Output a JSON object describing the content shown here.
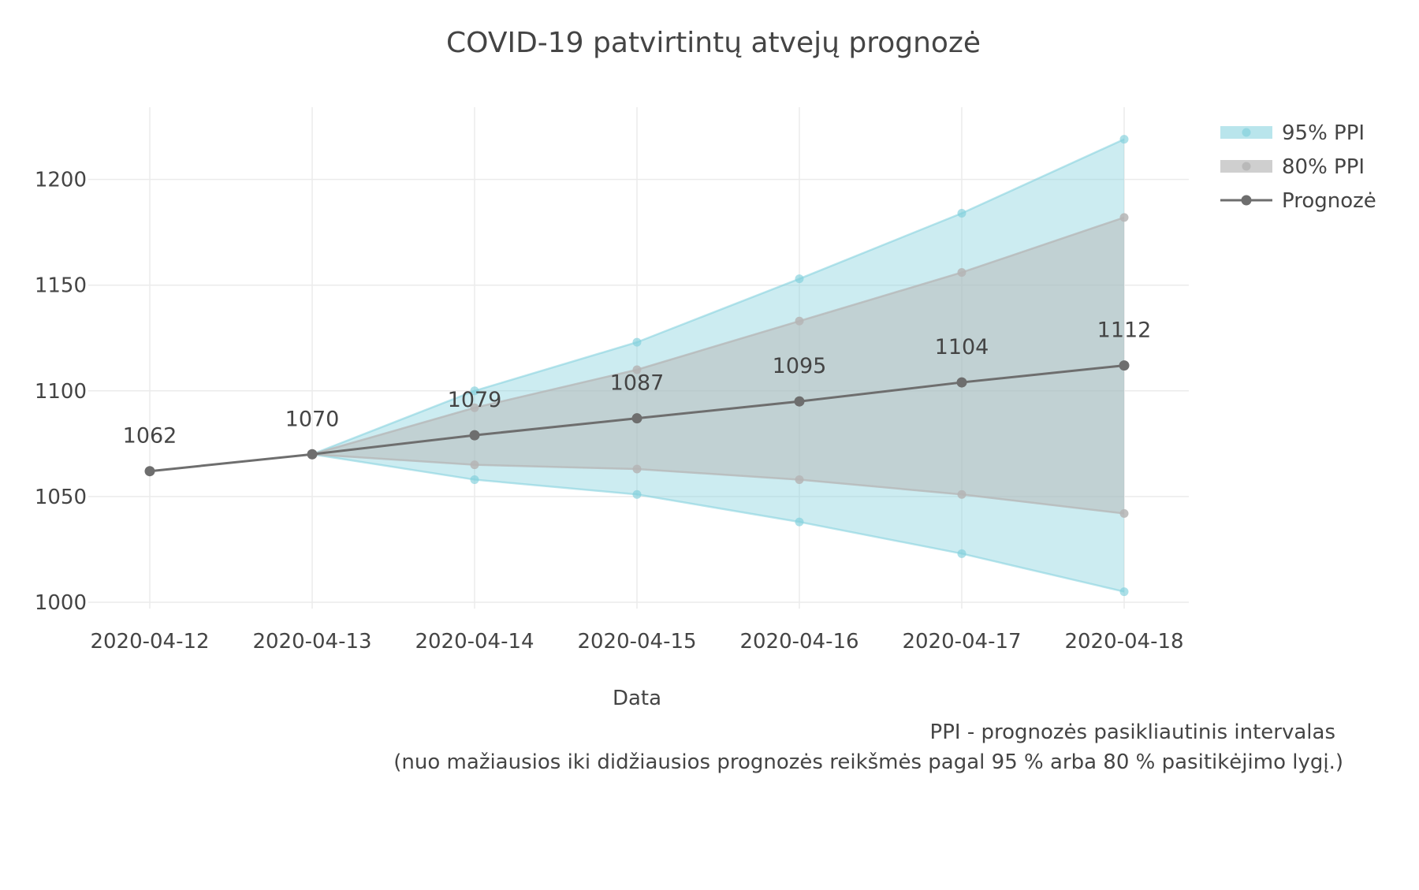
{
  "chart_data": {
    "type": "line",
    "title": "COVID-19 patvirtintų atvejų prognozė",
    "xlabel": "Data",
    "ylabel": "",
    "x": [
      "2020-04-12",
      "2020-04-13",
      "2020-04-14",
      "2020-04-15",
      "2020-04-16",
      "2020-04-17",
      "2020-04-18"
    ],
    "ylim": [
      990,
      1225
    ],
    "yticks": [
      1000,
      1050,
      1100,
      1150,
      1200
    ],
    "grid": true,
    "legend_position": "top-right",
    "series": [
      {
        "name": "95% PPI",
        "kind": "band",
        "color": "#7fcfdc",
        "x": [
          "2020-04-13",
          "2020-04-14",
          "2020-04-15",
          "2020-04-16",
          "2020-04-17",
          "2020-04-18"
        ],
        "upper": [
          1070,
          1100,
          1123,
          1153,
          1184,
          1219
        ],
        "lower": [
          1070,
          1058,
          1051,
          1038,
          1023,
          1005
        ]
      },
      {
        "name": "80% PPI",
        "kind": "band",
        "color": "#b5b5b5",
        "x": [
          "2020-04-13",
          "2020-04-14",
          "2020-04-15",
          "2020-04-16",
          "2020-04-17",
          "2020-04-18"
        ],
        "upper": [
          1070,
          1092,
          1110,
          1133,
          1156,
          1182
        ],
        "lower": [
          1070,
          1065,
          1063,
          1058,
          1051,
          1042
        ]
      },
      {
        "name": "Prognozė",
        "kind": "line",
        "color": "#6e6e6e",
        "x": [
          "2020-04-12",
          "2020-04-13",
          "2020-04-14",
          "2020-04-15",
          "2020-04-16",
          "2020-04-17",
          "2020-04-18"
        ],
        "values": [
          1062,
          1070,
          1079,
          1087,
          1095,
          1104,
          1112
        ],
        "labels": [
          "1062",
          "1070",
          "1079",
          "1087",
          "1095",
          "1104",
          "1112"
        ]
      }
    ],
    "annotations": [
      "PPI - prognozės pasikliautinis intervalas",
      "(nuo mažiausios iki didžiausios prognozės reikšmės pagal 95 % arba 80 % pasitikėjimo lygį.)"
    ]
  }
}
